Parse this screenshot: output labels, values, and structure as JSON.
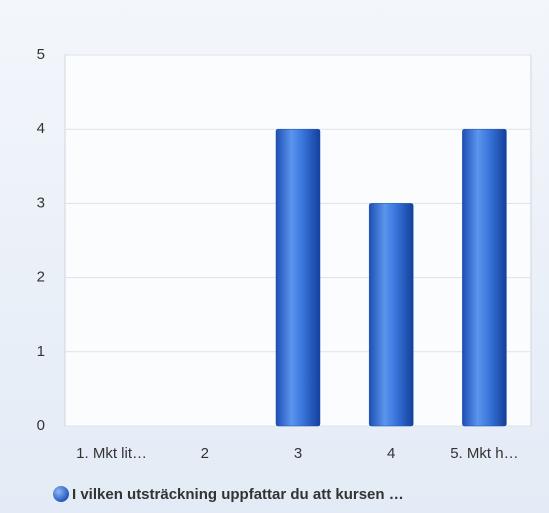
{
  "chart_data": {
    "type": "bar",
    "categories": [
      "1. Mkt lit…",
      "2",
      "3",
      "4",
      "5. Mkt h…"
    ],
    "series": [
      {
        "name": "I vilken utsträckning uppfattar du att kursen …",
        "color": "#2a62c9",
        "values": [
          0,
          0,
          4,
          3,
          4
        ]
      }
    ],
    "ylim": [
      0,
      5
    ],
    "yticks": [
      0,
      1,
      2,
      3,
      4,
      5
    ],
    "grid": true,
    "legend": "bottom"
  }
}
